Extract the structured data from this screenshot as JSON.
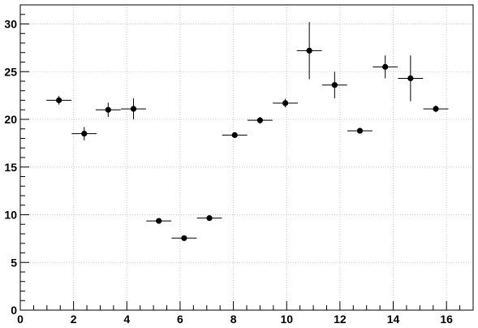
{
  "chart_data": {
    "type": "scatter",
    "title": "",
    "xlabel": "",
    "ylabel": "",
    "xlim": [
      0,
      17
    ],
    "ylim": [
      0,
      32
    ],
    "grid": true,
    "x_ticks": [
      0,
      2,
      4,
      6,
      8,
      10,
      12,
      14,
      16
    ],
    "y_ticks": [
      0,
      5,
      10,
      15,
      20,
      25,
      30
    ],
    "series": [
      {
        "x": [
          1.45,
          2.4,
          3.3,
          4.25,
          5.2,
          6.15,
          7.1,
          8.05,
          9.0,
          9.95,
          10.85,
          11.8,
          12.75,
          13.7,
          14.65,
          15.6
        ],
        "y": [
          22.0,
          18.5,
          21.0,
          21.1,
          9.35,
          7.55,
          9.65,
          18.35,
          19.9,
          21.7,
          27.2,
          23.6,
          18.8,
          25.5,
          24.3,
          21.1
        ],
        "x_err": [
          0.47,
          0.47,
          0.47,
          0.47,
          0.47,
          0.47,
          0.47,
          0.47,
          0.47,
          0.47,
          0.47,
          0.47,
          0.47,
          0.47,
          0.47,
          0.47
        ],
        "y_err": [
          0.45,
          0.7,
          0.75,
          1.1,
          0.15,
          0.15,
          0.25,
          0.2,
          0.35,
          0.45,
          3.0,
          1.4,
          0.2,
          1.2,
          2.4,
          0.35
        ]
      }
    ]
  }
}
